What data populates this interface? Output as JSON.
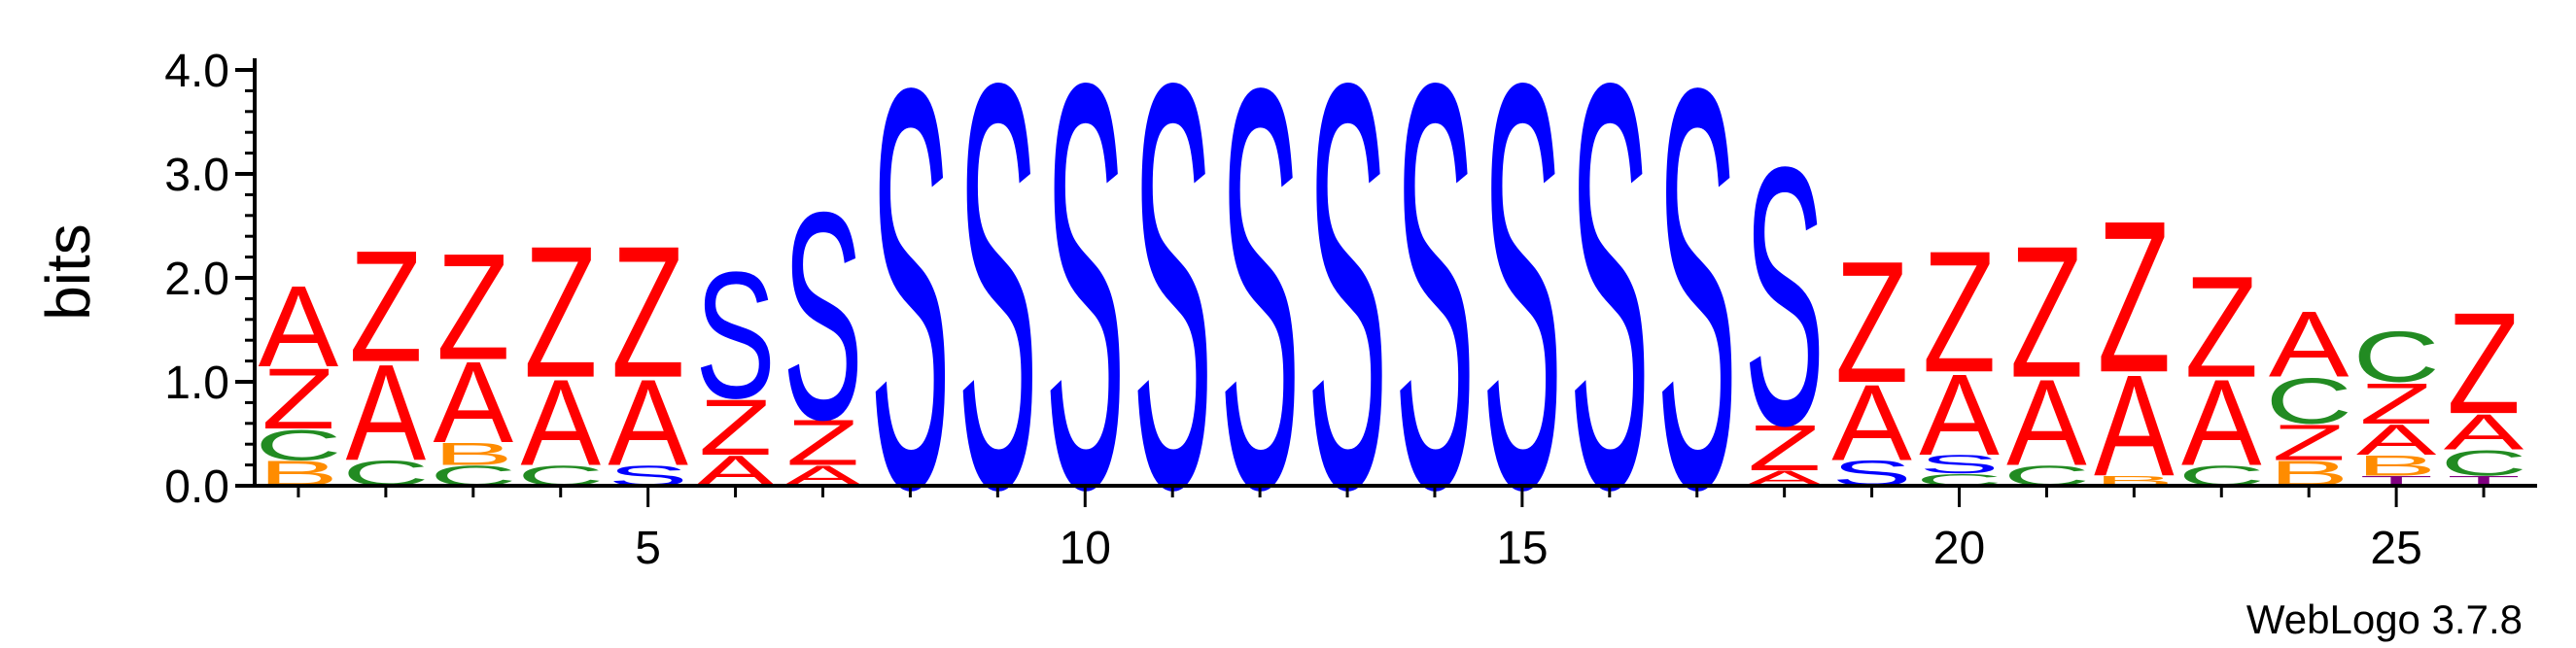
{
  "chart_data": {
    "type": "sequence-logo",
    "ylabel": "bits",
    "ylim": [
      0,
      4
    ],
    "y_ticks": [
      "0.0",
      "1.0",
      "2.0",
      "3.0",
      "4.0"
    ],
    "x_ticks": [
      "5",
      "10",
      "15",
      "20",
      "25"
    ],
    "x_tick_values": [
      5,
      10,
      15,
      20,
      25
    ],
    "positions": 26,
    "colors": {
      "A": "#ff0000",
      "Z": "#ff0000",
      "S": "#0000ff",
      "C": "#228b22",
      "B": "#ff8c00",
      "T": "#800080"
    },
    "columns": [
      {
        "position": 1,
        "stack": [
          {
            "letter": "B",
            "bits": 0.25
          },
          {
            "letter": "C",
            "bits": 0.3
          },
          {
            "letter": "Z",
            "bits": 0.6
          },
          {
            "letter": "A",
            "bits": 0.8
          }
        ]
      },
      {
        "position": 2,
        "stack": [
          {
            "letter": "C",
            "bits": 0.25
          },
          {
            "letter": "A",
            "bits": 0.95
          },
          {
            "letter": "Z",
            "bits": 1.1
          }
        ]
      },
      {
        "position": 3,
        "stack": [
          {
            "letter": "C",
            "bits": 0.2
          },
          {
            "letter": "B",
            "bits": 0.22
          },
          {
            "letter": "A",
            "bits": 0.8
          },
          {
            "letter": "Z",
            "bits": 1.05
          }
        ]
      },
      {
        "position": 4,
        "stack": [
          {
            "letter": "C",
            "bits": 0.2
          },
          {
            "letter": "A",
            "bits": 0.85
          },
          {
            "letter": "Z",
            "bits": 1.3
          }
        ]
      },
      {
        "position": 5,
        "stack": [
          {
            "letter": "S",
            "bits": 0.2
          },
          {
            "letter": "A",
            "bits": 0.85
          },
          {
            "letter": "Z",
            "bits": 1.3
          }
        ]
      },
      {
        "position": 6,
        "stack": [
          {
            "letter": "A",
            "bits": 0.3
          },
          {
            "letter": "Z",
            "bits": 0.55
          },
          {
            "letter": "S",
            "bits": 1.25
          }
        ]
      },
      {
        "position": 7,
        "stack": [
          {
            "letter": "A",
            "bits": 0.2
          },
          {
            "letter": "Z",
            "bits": 0.45
          },
          {
            "letter": "S",
            "bits": 2.05
          }
        ]
      },
      {
        "position": 8,
        "stack": [
          {
            "letter": "S",
            "bits": 3.95
          }
        ]
      },
      {
        "position": 9,
        "stack": [
          {
            "letter": "S",
            "bits": 4.0
          }
        ]
      },
      {
        "position": 10,
        "stack": [
          {
            "letter": "S",
            "bits": 4.0
          }
        ]
      },
      {
        "position": 11,
        "stack": [
          {
            "letter": "S",
            "bits": 4.0
          }
        ]
      },
      {
        "position": 12,
        "stack": [
          {
            "letter": "S",
            "bits": 3.95
          }
        ]
      },
      {
        "position": 13,
        "stack": [
          {
            "letter": "S",
            "bits": 4.0
          }
        ]
      },
      {
        "position": 14,
        "stack": [
          {
            "letter": "S",
            "bits": 4.0
          }
        ]
      },
      {
        "position": 15,
        "stack": [
          {
            "letter": "S",
            "bits": 4.0
          }
        ]
      },
      {
        "position": 16,
        "stack": [
          {
            "letter": "S",
            "bits": 4.0
          }
        ]
      },
      {
        "position": 17,
        "stack": [
          {
            "letter": "S",
            "bits": 3.95
          }
        ]
      },
      {
        "position": 18,
        "stack": [
          {
            "letter": "A",
            "bits": 0.15
          },
          {
            "letter": "Z",
            "bits": 0.45
          },
          {
            "letter": "S",
            "bits": 2.55
          }
        ]
      },
      {
        "position": 19,
        "stack": [
          {
            "letter": "S",
            "bits": 0.25
          },
          {
            "letter": "A",
            "bits": 0.75
          },
          {
            "letter": "Z",
            "bits": 1.2
          }
        ]
      },
      {
        "position": 20,
        "stack": [
          {
            "letter": "C",
            "bits": 0.12
          },
          {
            "letter": "S",
            "bits": 0.18
          },
          {
            "letter": "A",
            "bits": 0.8
          },
          {
            "letter": "Z",
            "bits": 1.2
          }
        ]
      },
      {
        "position": 21,
        "stack": [
          {
            "letter": "C",
            "bits": 0.2
          },
          {
            "letter": "A",
            "bits": 0.85
          },
          {
            "letter": "Z",
            "bits": 1.3
          }
        ]
      },
      {
        "position": 22,
        "stack": [
          {
            "letter": "B",
            "bits": 0.1
          },
          {
            "letter": "A",
            "bits": 1.0
          },
          {
            "letter": "Z",
            "bits": 1.5
          }
        ]
      },
      {
        "position": 23,
        "stack": [
          {
            "letter": "C",
            "bits": 0.2
          },
          {
            "letter": "A",
            "bits": 0.85
          },
          {
            "letter": "Z",
            "bits": 1.0
          }
        ]
      },
      {
        "position": 24,
        "stack": [
          {
            "letter": "B",
            "bits": 0.25
          },
          {
            "letter": "Z",
            "bits": 0.35
          },
          {
            "letter": "C",
            "bits": 0.45
          },
          {
            "letter": "A",
            "bits": 0.65
          }
        ]
      },
      {
        "position": 25,
        "stack": [
          {
            "letter": "T",
            "bits": 0.1
          },
          {
            "letter": "B",
            "bits": 0.2
          },
          {
            "letter": "A",
            "bits": 0.3
          },
          {
            "letter": "Z",
            "bits": 0.4
          },
          {
            "letter": "C",
            "bits": 0.5
          }
        ]
      },
      {
        "position": 26,
        "stack": [
          {
            "letter": "T",
            "bits": 0.1
          },
          {
            "letter": "C",
            "bits": 0.25
          },
          {
            "letter": "A",
            "bits": 0.35
          },
          {
            "letter": "Z",
            "bits": 1.0
          }
        ]
      }
    ],
    "credit": "WebLogo 3.7.8"
  }
}
